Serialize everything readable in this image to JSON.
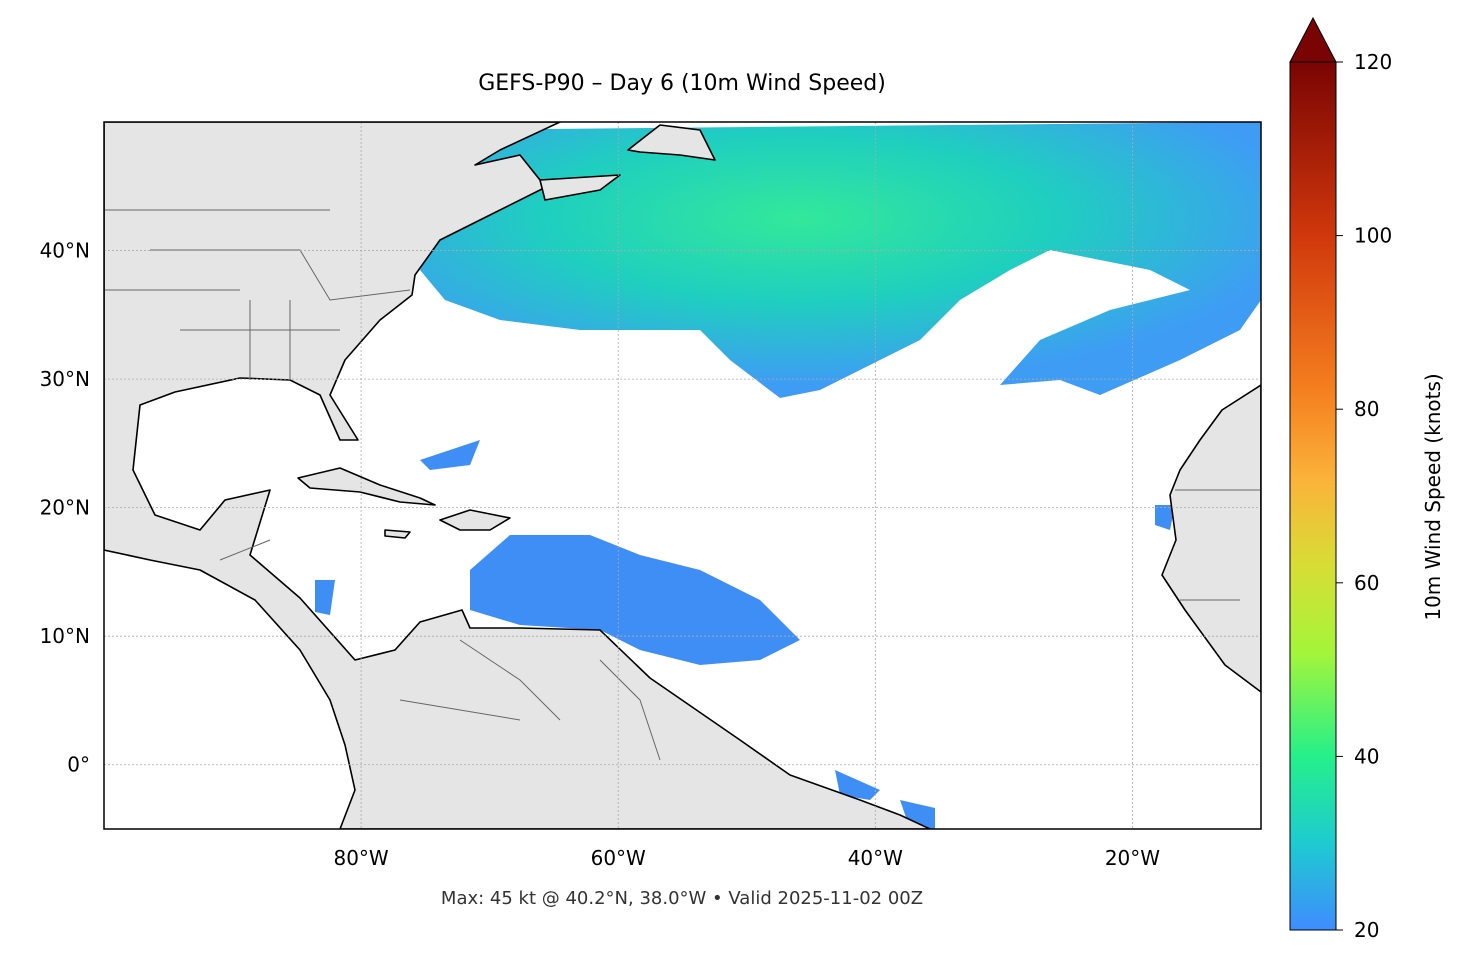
{
  "title": "GEFS-P90 – Day 6 (10m Wind Speed)",
  "map": {
    "lonlim": [
      -100,
      -10
    ],
    "latlim": [
      -5,
      50
    ],
    "lon_ticks": [
      {
        "value": -80,
        "label": "80°W"
      },
      {
        "value": -60,
        "label": "60°W"
      },
      {
        "value": -40,
        "label": "40°W"
      },
      {
        "value": -20,
        "label": "20°W"
      }
    ],
    "lat_ticks": [
      {
        "value": 0,
        "label": "0°"
      },
      {
        "value": 10,
        "label": "10°N"
      },
      {
        "value": 20,
        "label": "20°N"
      },
      {
        "value": 30,
        "label": "30°N"
      },
      {
        "value": 40,
        "label": "40°N"
      }
    ]
  },
  "colorbar": {
    "label": "10m Wind Speed (knots)",
    "lim": [
      20,
      120
    ],
    "ticks": [
      20,
      40,
      60,
      80,
      100,
      120
    ]
  },
  "footer": "Max: 45 kt @ 40.2°N, 38.0°W • Valid 2025-11-02 00Z"
}
